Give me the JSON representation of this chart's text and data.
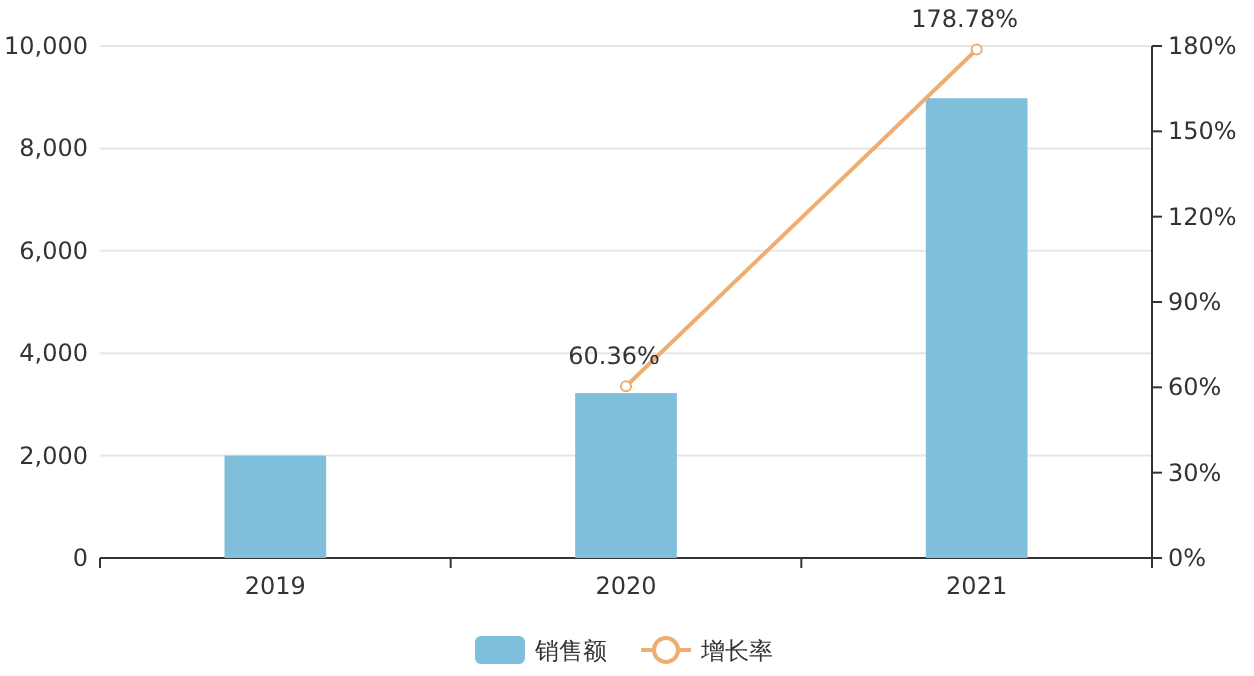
{
  "chart_data": {
    "type": "bar",
    "categories": [
      "2019",
      "2020",
      "2021"
    ],
    "series": [
      {
        "name": "销售额",
        "color": "#7fbfdc",
        "values": [
          2000,
          3220,
          8980
        ]
      },
      {
        "name": "增长率",
        "type": "line",
        "axis": "y2",
        "color": "#f0ad72",
        "marker": "circle",
        "values": [
          null,
          60.36,
          178.78
        ],
        "value_labels": [
          null,
          "60.36%",
          "178.78%"
        ]
      }
    ],
    "ylim": [
      0,
      10000
    ],
    "yticks": [
      {
        "value": 0,
        "label": "0"
      },
      {
        "value": 2000,
        "label": "2,000"
      },
      {
        "value": 4000,
        "label": "4,000"
      },
      {
        "value": 6000,
        "label": "6,000"
      },
      {
        "value": 8000,
        "label": "8,000"
      },
      {
        "value": 10000,
        "label": "10,000"
      }
    ],
    "y2lim": [
      0,
      180
    ],
    "y2ticks": [
      {
        "value": 0,
        "label": "0%"
      },
      {
        "value": 30,
        "label": "30%"
      },
      {
        "value": 60,
        "label": "60%"
      },
      {
        "value": 90,
        "label": "90%"
      },
      {
        "value": 120,
        "label": "120%"
      },
      {
        "value": 150,
        "label": "150%"
      },
      {
        "value": 180,
        "label": "180%"
      }
    ],
    "grid": "y",
    "legend": "bottom"
  }
}
